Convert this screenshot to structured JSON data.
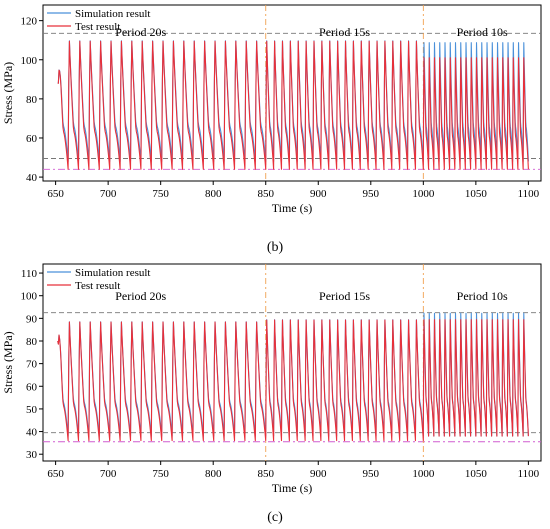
{
  "chart_data": [
    {
      "panel": "(b)",
      "type": "line",
      "xlabel": "Time (s)",
      "ylabel": "Stress (MPa)",
      "xlim": [
        638,
        1112
      ],
      "ylim": [
        38,
        128
      ],
      "xticks": [
        650,
        700,
        750,
        800,
        850,
        900,
        950,
        1000,
        1050,
        1100
      ],
      "yticks": [
        40,
        60,
        80,
        100,
        120
      ],
      "legend_position": "top-left",
      "series": [
        {
          "name": "Simulation result",
          "color": "#4a90d9"
        },
        {
          "name": "Test result",
          "color": "#e8303a"
        }
      ],
      "segments": [
        {
          "label": "Period 20s",
          "x_start": 652,
          "x_end": 850,
          "period": 9.9,
          "sim_max": 114,
          "sim_min": 48,
          "test_max": 114,
          "test_min": 44,
          "start_value": 88
        },
        {
          "label": "Period 15s",
          "x_start": 850,
          "x_end": 1000,
          "period": 7.5,
          "sim_max": 114,
          "sim_min": 48,
          "test_max": 114,
          "test_min": 44
        },
        {
          "label": "Period 10s",
          "x_start": 1000,
          "x_end": 1100,
          "period": 5.0,
          "sim_max": 113,
          "sim_min": 48,
          "test_max": 105,
          "test_min": 44
        }
      ],
      "reference_lines": [
        {
          "y": 113.5,
          "style": "dashed",
          "color": "#777777"
        },
        {
          "y": 49.5,
          "style": "dashed",
          "color": "#777777"
        },
        {
          "y": 44,
          "style": "dash-dot",
          "color": "#d05cd0"
        }
      ],
      "period_boundaries": [
        850,
        1000
      ],
      "caption": "(b)"
    },
    {
      "panel": "(c)",
      "type": "line",
      "xlabel": "Time (s)",
      "ylabel": "Stress (MPa)",
      "xlim": [
        638,
        1112
      ],
      "ylim": [
        27,
        114
      ],
      "xticks": [
        650,
        700,
        750,
        800,
        850,
        900,
        950,
        1000,
        1050,
        1100
      ],
      "yticks": [
        30,
        40,
        50,
        60,
        70,
        80,
        90,
        100,
        110
      ],
      "legend_position": "top-left",
      "series": [
        {
          "name": "Simulation result",
          "color": "#4a90d9"
        },
        {
          "name": "Test result",
          "color": "#e8303a"
        }
      ],
      "segments": [
        {
          "label": "Period 20s",
          "x_start": 652,
          "x_end": 850,
          "period": 9.9,
          "sim_max": 92,
          "sim_min": 38,
          "test_max": 92,
          "test_min": 36,
          "start_value": 80
        },
        {
          "label": "Period 15s",
          "x_start": 850,
          "x_end": 1000,
          "period": 7.5,
          "sim_max": 93,
          "sim_min": 38,
          "test_max": 93,
          "test_min": 36
        },
        {
          "label": "Period 10s",
          "x_start": 1000,
          "x_end": 1100,
          "period": 5.0,
          "sim_max": 96,
          "sim_min": 38,
          "test_max": 93,
          "test_min": 38
        }
      ],
      "reference_lines": [
        {
          "y": 92.5,
          "style": "dashed",
          "color": "#777777"
        },
        {
          "y": 39.5,
          "style": "dashed",
          "color": "#777777"
        },
        {
          "y": 35.5,
          "style": "dash-dot",
          "color": "#d05cd0"
        }
      ],
      "period_boundaries": [
        850,
        1000
      ],
      "caption": "(c)"
    }
  ]
}
